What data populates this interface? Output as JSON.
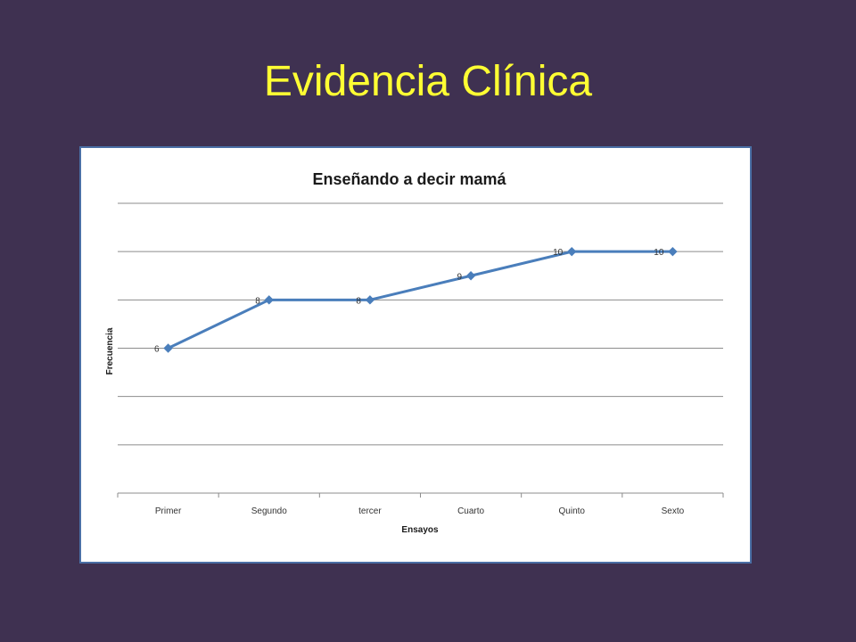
{
  "slide": {
    "title": "Evidencia Clínica",
    "background": "#3f3151",
    "title_color": "#ffff33"
  },
  "chart_data": {
    "type": "line",
    "title": "Enseñando a decir mamá",
    "xlabel": "Ensayos",
    "ylabel": "Frecuencia",
    "categories": [
      "Primer",
      "Segundo",
      "tercer",
      "Cuarto",
      "Quinto",
      "Sexto"
    ],
    "series": [
      {
        "values": [
          6,
          8,
          8,
          9,
          10,
          10
        ],
        "color": "#4a7ebb"
      }
    ],
    "data_labels": [
      "6",
      "8",
      "8",
      "9",
      "10",
      "10"
    ],
    "ylim": [
      0,
      12
    ],
    "grid": true,
    "legend": "none"
  }
}
